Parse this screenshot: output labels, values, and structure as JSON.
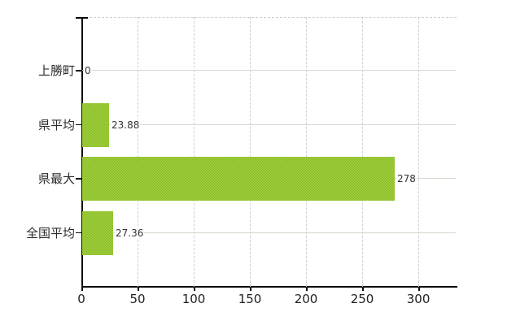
{
  "chart_data": {
    "type": "bar",
    "orientation": "horizontal",
    "title": "",
    "xlabel": "",
    "ylabel": "",
    "categories": [
      "上勝町",
      "県平均",
      "県最大",
      "全国平均"
    ],
    "values": [
      0,
      23.88,
      278,
      27.36
    ],
    "value_labels": [
      "0",
      "23.88",
      "278",
      "27.36"
    ],
    "x_ticks": [
      0,
      50,
      100,
      150,
      200,
      250,
      300
    ],
    "x_tick_labels": [
      "0",
      "50",
      "100",
      "150",
      "200",
      "250",
      "300"
    ],
    "xlim": [
      0,
      334
    ],
    "grid": true,
    "legend": false,
    "colors": {
      "bar_light": "#aad43a",
      "bar_dark": "#82b82e",
      "axis": "#0a0a0a",
      "grid_horizontal": "#d3dbcc",
      "grid_vertical": "#cfcfd6",
      "top_border": "#d3ccd3",
      "text": "#2b2b2b"
    }
  }
}
